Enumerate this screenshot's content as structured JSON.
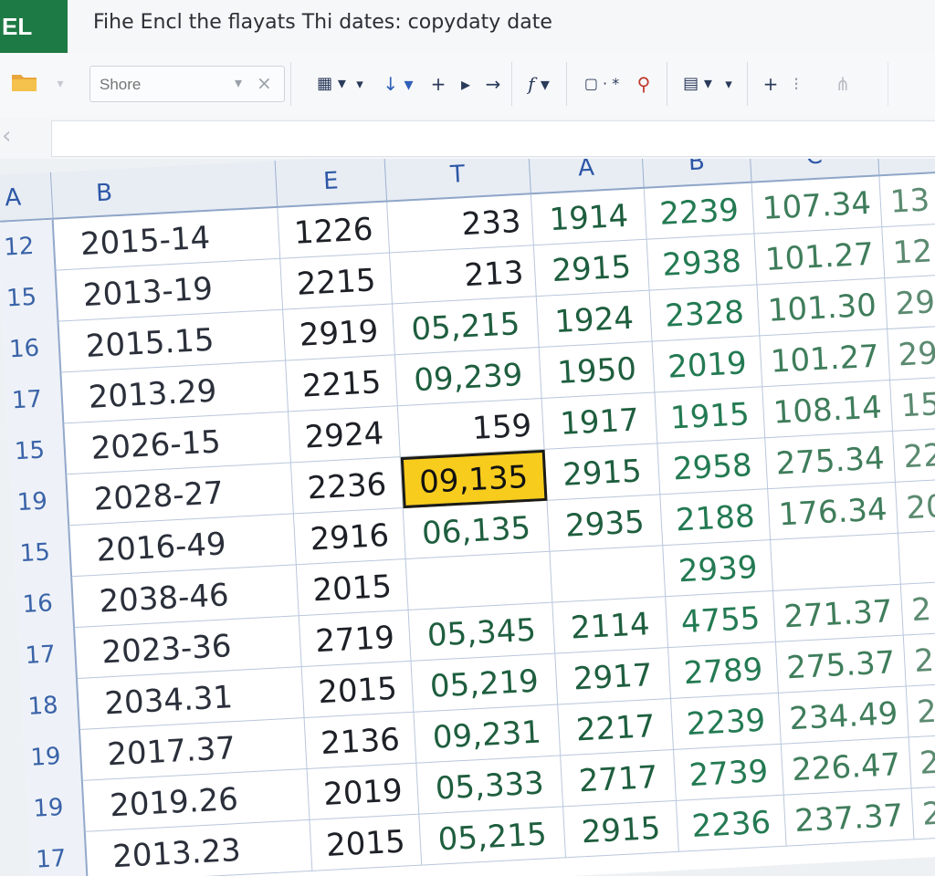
{
  "titlebar": {
    "app_badge": "EL",
    "document_title": "Fihe Encl the flayats  Thi dates: copydaty date"
  },
  "toolbar": {
    "search_placeholder": "Shore",
    "items": [
      "▾",
      "×",
      "▦ ▾",
      "▾",
      "↓ ▾",
      "+",
      "▸",
      "→",
      "f ▾",
      "▢ · *",
      "⚲",
      "▤ ▾",
      "▾",
      "+",
      "⁝",
      "⋔"
    ]
  },
  "sheet": {
    "columns": [
      "A",
      "B",
      "E",
      "T",
      "A",
      "B",
      "C",
      ""
    ],
    "selected_cell": "09,135",
    "rows": [
      {
        "num": "12",
        "b": "2015-14",
        "e": "1226",
        "t": "233",
        "a": "1914",
        "b2": "2239",
        "c": "107.34",
        "x": "13"
      },
      {
        "num": "15",
        "b": "2013-19",
        "e": "2215",
        "t": "213",
        "a": "2915",
        "b2": "2938",
        "c": "101.27",
        "x": "12"
      },
      {
        "num": "16",
        "b": "2015.15",
        "e": "2919",
        "t": "05,215",
        "a": "1924",
        "b2": "2328",
        "c": "101.30",
        "x": "29"
      },
      {
        "num": "17",
        "b": "2013.29",
        "e": "2215",
        "t": "09,239",
        "a": "1950",
        "b2": "2019",
        "c": "101.27",
        "x": "29"
      },
      {
        "num": "15",
        "b": "2026-15",
        "e": "2924",
        "t": "159",
        "a": "1917",
        "b2": "1915",
        "c": "108.14",
        "x": "15"
      },
      {
        "num": "19",
        "b": "2028-27",
        "e": "2236",
        "t": "09,135",
        "a": "2915",
        "b2": "2958",
        "c": "275.34",
        "x": "22"
      },
      {
        "num": "15",
        "b": "2016-49",
        "e": "2916",
        "t": "06,135",
        "a": "2935",
        "b2": "2188",
        "c": "176.34",
        "x": "20"
      },
      {
        "num": "16",
        "b": "2038-46",
        "e": "2015",
        "t": "",
        "a": "",
        "b2": "2939",
        "c": "",
        "x": ""
      },
      {
        "num": "17",
        "b": "2023-36",
        "e": "2719",
        "t": "05,345",
        "a": "2114",
        "b2": "4755",
        "c": "271.37",
        "x": "2"
      },
      {
        "num": "18",
        "b": "2034.31",
        "e": "2015",
        "t": "05,219",
        "a": "2917",
        "b2": "2789",
        "c": "275.37",
        "x": "2"
      },
      {
        "num": "19",
        "b": "2017.37",
        "e": "2136",
        "t": "09,231",
        "a": "2217",
        "b2": "2239",
        "c": "234.49",
        "x": "2"
      },
      {
        "num": "19",
        "b": "2019.26",
        "e": "2019",
        "t": "05,333",
        "a": "2717",
        "b2": "2739",
        "c": "226.47",
        "x": "2"
      },
      {
        "num": "17",
        "b": "2013.23",
        "e": "2015",
        "t": "05,215",
        "a": "2915",
        "b2": "2236",
        "c": "237.37",
        "x": "2"
      }
    ]
  },
  "colors": {
    "app_green": "#1e7a45",
    "header_blue": "#2d57a6",
    "value_green": "#1e5e3e",
    "selection_yellow": "#f7cc1d"
  }
}
